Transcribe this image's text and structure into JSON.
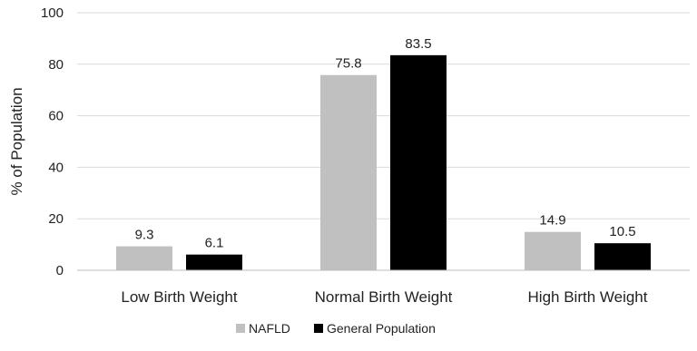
{
  "chart_data": {
    "type": "bar",
    "categories": [
      "Low Birth Weight",
      "Normal Birth Weight",
      "High Birth Weight"
    ],
    "series": [
      {
        "name": "NAFLD",
        "values": [
          9.3,
          75.8,
          14.9
        ],
        "labels": [
          "9.3",
          "75.8",
          "14.9"
        ],
        "color": "#c0c0c0"
      },
      {
        "name": "General Population",
        "values": [
          6.1,
          83.5,
          10.5
        ],
        "labels": [
          "6.1",
          "83.5",
          "10.5"
        ],
        "color": "#000000"
      }
    ],
    "title": "",
    "xlabel": "",
    "ylabel": "% of Population",
    "ylim": [
      0,
      100
    ],
    "yticks": [
      0,
      20,
      40,
      60,
      80,
      100
    ],
    "ytick_labels": [
      "0",
      "20",
      "40",
      "60",
      "80",
      "100"
    ],
    "grid": true,
    "legend": "bottom"
  }
}
